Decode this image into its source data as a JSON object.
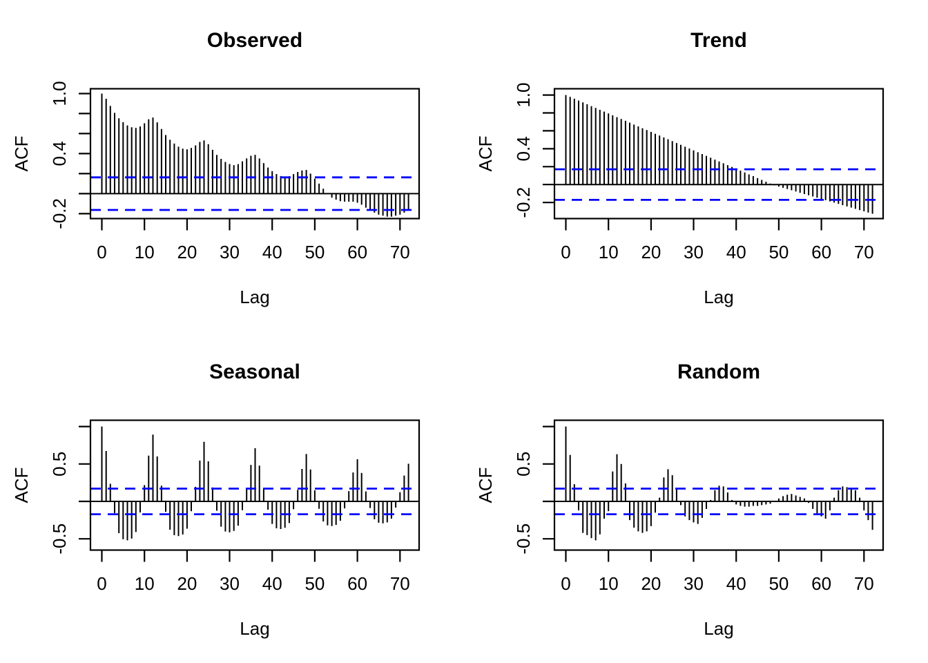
{
  "figure": {
    "background": "#ffffff",
    "bar_color": "#000000",
    "axis_color": "#000000",
    "conf_line_color": "#0000ff",
    "grid_layout": "2x2",
    "x_tick_values": [
      0,
      10,
      20,
      30,
      40,
      50,
      60,
      70
    ],
    "x_tick_labels": [
      "0",
      "10",
      "20",
      "30",
      "40",
      "50",
      "60",
      "70"
    ]
  },
  "chart_data": [
    {
      "type": "bar",
      "title": "Observed",
      "xlabel": "Lag",
      "ylabel": "ACF",
      "x_range": [
        0,
        72
      ],
      "ylim": [
        -0.249,
        1.048
      ],
      "grid": "off",
      "conf_bounds": [
        -0.163,
        0.163
      ],
      "conf_line_style": "dashed-blue",
      "y_ticks": [
        {
          "v": 1.0,
          "label": "1.0"
        },
        {
          "v": 0.8,
          "label": ""
        },
        {
          "v": 0.6,
          "label": ""
        },
        {
          "v": 0.4,
          "label": "0.4"
        },
        {
          "v": 0.2,
          "label": ""
        },
        {
          "v": 0.0,
          "label": ""
        },
        {
          "v": -0.2,
          "label": "-0.2"
        }
      ],
      "values": [
        1.0,
        0.948,
        0.876,
        0.807,
        0.753,
        0.714,
        0.682,
        0.663,
        0.656,
        0.671,
        0.703,
        0.743,
        0.76,
        0.713,
        0.646,
        0.586,
        0.538,
        0.5,
        0.469,
        0.45,
        0.442,
        0.457,
        0.482,
        0.517,
        0.532,
        0.494,
        0.438,
        0.387,
        0.348,
        0.317,
        0.296,
        0.285,
        0.295,
        0.323,
        0.352,
        0.379,
        0.388,
        0.352,
        0.305,
        0.261,
        0.225,
        0.196,
        0.176,
        0.166,
        0.174,
        0.195,
        0.217,
        0.232,
        0.237,
        0.2,
        0.15,
        0.1,
        0.05,
        0.0,
        -0.04,
        -0.06,
        -0.075,
        -0.08,
        -0.08,
        -0.08,
        -0.09,
        -0.11,
        -0.14,
        -0.17,
        -0.19,
        -0.21,
        -0.22,
        -0.23,
        -0.23,
        -0.22,
        -0.21,
        -0.19,
        -0.17
      ]
    },
    {
      "type": "bar",
      "title": "Trend",
      "xlabel": "Lag",
      "ylabel": "ACF",
      "x_range": [
        0,
        72
      ],
      "ylim": [
        -0.38,
        1.07
      ],
      "grid": "off",
      "conf_bounds": [
        -0.171,
        0.171
      ],
      "conf_line_style": "dashed-blue",
      "y_ticks": [
        {
          "v": 1.0,
          "label": "1.0"
        },
        {
          "v": 0.8,
          "label": ""
        },
        {
          "v": 0.6,
          "label": ""
        },
        {
          "v": 0.4,
          "label": "0.4"
        },
        {
          "v": 0.2,
          "label": ""
        },
        {
          "v": 0.0,
          "label": ""
        },
        {
          "v": -0.2,
          "label": "-0.2"
        }
      ],
      "values": [
        1.0,
        0.979,
        0.959,
        0.938,
        0.918,
        0.897,
        0.876,
        0.856,
        0.835,
        0.815,
        0.794,
        0.773,
        0.753,
        0.732,
        0.712,
        0.691,
        0.67,
        0.65,
        0.629,
        0.609,
        0.588,
        0.567,
        0.547,
        0.526,
        0.506,
        0.485,
        0.464,
        0.444,
        0.423,
        0.403,
        0.382,
        0.361,
        0.341,
        0.32,
        0.3,
        0.279,
        0.258,
        0.238,
        0.217,
        0.197,
        0.176,
        0.155,
        0.135,
        0.114,
        0.094,
        0.073,
        0.052,
        0.032,
        0.011,
        -0.009,
        -0.023,
        -0.037,
        -0.05,
        -0.064,
        -0.078,
        -0.092,
        -0.106,
        -0.119,
        -0.133,
        -0.147,
        -0.161,
        -0.175,
        -0.188,
        -0.202,
        -0.216,
        -0.23,
        -0.244,
        -0.257,
        -0.271,
        -0.285,
        -0.299,
        -0.313,
        -0.326
      ]
    },
    {
      "type": "bar",
      "title": "Seasonal",
      "xlabel": "Lag",
      "ylabel": "ACF",
      "x_range": [
        0,
        72
      ],
      "ylim": [
        -0.65,
        1.084
      ],
      "grid": "off",
      "conf_bounds": [
        -0.171,
        0.171
      ],
      "conf_line_style": "dashed-blue",
      "y_ticks": [
        {
          "v": 1.0,
          "label": ""
        },
        {
          "v": 0.5,
          "label": "0.5"
        },
        {
          "v": 0.0,
          "label": ""
        },
        {
          "v": -0.5,
          "label": "-0.5"
        }
      ],
      "values": [
        1.0,
        0.674,
        0.235,
        -0.156,
        -0.424,
        -0.505,
        -0.52,
        -0.496,
        -0.408,
        -0.147,
        0.218,
        0.612,
        0.892,
        0.601,
        0.21,
        -0.139,
        -0.378,
        -0.451,
        -0.463,
        -0.442,
        -0.364,
        -0.131,
        0.195,
        0.546,
        0.796,
        0.536,
        0.187,
        -0.124,
        -0.337,
        -0.402,
        -0.413,
        -0.394,
        -0.324,
        -0.117,
        0.174,
        0.487,
        0.71,
        0.478,
        0.167,
        -0.11,
        -0.3,
        -0.359,
        -0.369,
        -0.352,
        -0.289,
        -0.104,
        0.155,
        0.434,
        0.633,
        0.426,
        0.149,
        -0.098,
        -0.268,
        -0.32,
        -0.329,
        -0.314,
        -0.258,
        -0.093,
        0.138,
        0.387,
        0.564,
        0.38,
        0.133,
        -0.088,
        -0.239,
        -0.285,
        -0.293,
        -0.28,
        -0.23,
        -0.083,
        0.123,
        0.345,
        0.503
      ]
    },
    {
      "type": "bar",
      "title": "Random",
      "xlabel": "Lag",
      "ylabel": "ACF",
      "x_range": [
        0,
        72
      ],
      "ylim": [
        -0.65,
        1.084
      ],
      "grid": "off",
      "conf_bounds": [
        -0.171,
        0.171
      ],
      "conf_line_style": "dashed-blue",
      "y_ticks": [
        {
          "v": 1.0,
          "label": ""
        },
        {
          "v": 0.5,
          "label": "0.5"
        },
        {
          "v": 0.0,
          "label": ""
        },
        {
          "v": -0.5,
          "label": "-0.5"
        }
      ],
      "values": [
        1.0,
        0.62,
        0.23,
        -0.12,
        -0.42,
        -0.45,
        -0.49,
        -0.52,
        -0.44,
        -0.23,
        -0.13,
        0.4,
        0.63,
        0.5,
        0.24,
        -0.25,
        -0.35,
        -0.4,
        -0.42,
        -0.4,
        -0.33,
        -0.15,
        0.05,
        0.32,
        0.43,
        0.35,
        0.17,
        -0.05,
        -0.2,
        -0.25,
        -0.28,
        -0.3,
        -0.22,
        -0.1,
        0.02,
        0.15,
        0.21,
        0.2,
        0.12,
        0.02,
        -0.04,
        -0.06,
        -0.07,
        -0.07,
        -0.06,
        -0.06,
        -0.05,
        -0.04,
        -0.03,
        0.0,
        0.04,
        0.07,
        0.09,
        0.1,
        0.08,
        0.06,
        0.04,
        -0.02,
        -0.1,
        -0.16,
        -0.2,
        -0.23,
        -0.12,
        0.05,
        0.15,
        0.2,
        0.19,
        0.18,
        0.15,
        0.05,
        -0.12,
        -0.25,
        -0.38
      ]
    }
  ]
}
